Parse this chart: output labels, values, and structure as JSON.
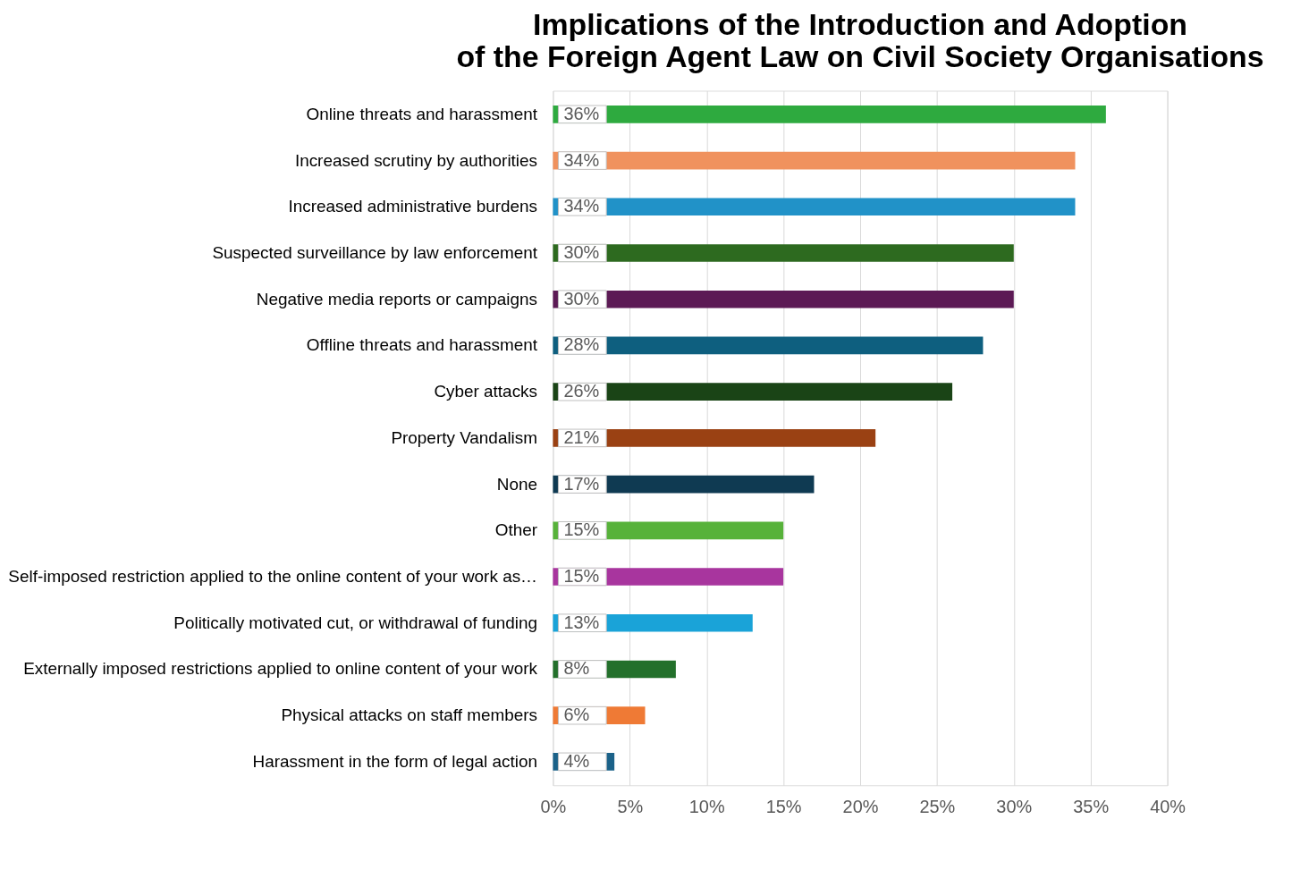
{
  "chart_data": {
    "type": "bar",
    "orientation": "horizontal",
    "title": "Implications of the Introduction and Adoption\nof the Foreign Agent Law on Civil Society Organisations",
    "categories": [
      "Online threats and harassment",
      "Increased scrutiny by authorities",
      "Increased administrative burdens",
      "Suspected surveillance by law enforcement",
      "Negative media reports or campaigns",
      "Offline threats and harassment",
      "Cyber attacks",
      "Property Vandalism",
      "None",
      "Other",
      "Self-imposed restriction applied to the online content of your work as…",
      "Politically motivated cut, or withdrawal of funding",
      "Externally imposed restrictions applied to online content of your work",
      "Physical attacks on staff members",
      "Harassment in the form of legal action"
    ],
    "values": [
      36,
      34,
      34,
      30,
      30,
      28,
      26,
      21,
      17,
      15,
      15,
      13,
      8,
      6,
      4
    ],
    "value_labels": [
      "36%",
      "34%",
      "34%",
      "30%",
      "30%",
      "28%",
      "26%",
      "21%",
      "17%",
      "15%",
      "15%",
      "13%",
      "8%",
      "6%",
      "4%"
    ],
    "colors": [
      "#2eaa3f",
      "#f0925e",
      "#2192c8",
      "#2d6a1f",
      "#5c1a55",
      "#0e5f7f",
      "#1a4416",
      "#9a4113",
      "#0f3a52",
      "#57b23a",
      "#a8359e",
      "#1aa3d8",
      "#23702b",
      "#ef7a35",
      "#1b6289"
    ],
    "xlim": [
      0,
      40
    ],
    "xticks": [
      {
        "value": 0,
        "label": "0%"
      },
      {
        "value": 5,
        "label": "5%"
      },
      {
        "value": 10,
        "label": "10%"
      },
      {
        "value": 15,
        "label": "15%"
      },
      {
        "value": 20,
        "label": "20%"
      },
      {
        "value": 25,
        "label": "25%"
      },
      {
        "value": 30,
        "label": "30%"
      },
      {
        "value": 35,
        "label": "35%"
      },
      {
        "value": 40,
        "label": "40%"
      }
    ],
    "grid": "x",
    "legend": false
  }
}
